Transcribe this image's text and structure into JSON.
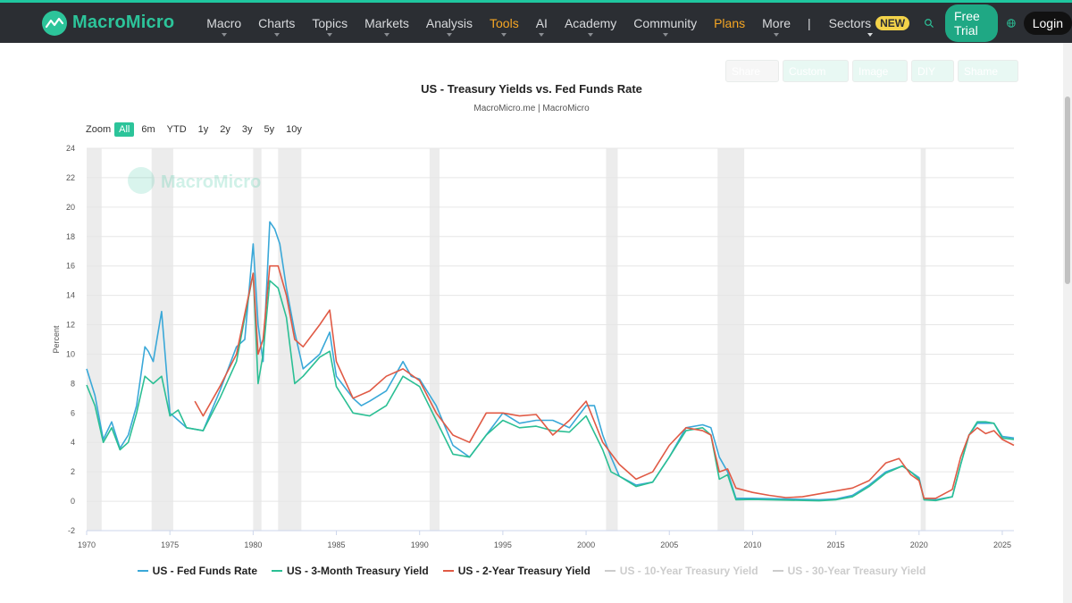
{
  "header": {
    "brand": "MacroMicro",
    "nav": [
      {
        "label": "Macro",
        "caret": true,
        "highlight": false
      },
      {
        "label": "Charts",
        "caret": true,
        "highlight": false
      },
      {
        "label": "Topics",
        "caret": true,
        "highlight": false
      },
      {
        "label": "Markets",
        "caret": true,
        "highlight": false
      },
      {
        "label": "Analysis",
        "caret": true,
        "highlight": false
      },
      {
        "label": "Tools",
        "caret": true,
        "highlight": true
      },
      {
        "label": "AI",
        "caret": true,
        "highlight": false
      },
      {
        "label": "Academy",
        "caret": true,
        "highlight": false
      },
      {
        "label": "Community",
        "caret": true,
        "highlight": false
      },
      {
        "label": "Plans",
        "caret": false,
        "highlight": true
      },
      {
        "label": "More",
        "caret": true,
        "highlight": false
      }
    ],
    "separator": "|",
    "sectors": "Sectors",
    "sectors_badge": "NEW",
    "free_trial": "Free Trial",
    "login": "Login"
  },
  "toolbar": {
    "buttons": [
      "Share",
      "Custom",
      "Image",
      "DIY",
      "Shame"
    ]
  },
  "zoom": {
    "label": "Zoom",
    "options": [
      "All",
      "6m",
      "YTD",
      "1y",
      "2y",
      "3y",
      "5y",
      "10y"
    ],
    "active": "All"
  },
  "watermark": "MacroMicro",
  "colors": {
    "accent": "#2cc49a",
    "fed_funds": "#3aa8d8",
    "three_month": "#2bbf94",
    "two_year": "#e05a45",
    "recession": "#e6e6e6"
  },
  "chart_data": {
    "type": "line",
    "title": "US - Treasury Yields vs. Fed Funds Rate",
    "subtitle": "MacroMicro.me | MacroMicro",
    "ylabel": "Percent",
    "xlabel": "",
    "xlim": [
      1970,
      2025.7
    ],
    "ylim": [
      -2,
      24
    ],
    "yticks": [
      -2,
      0,
      2,
      4,
      6,
      8,
      10,
      12,
      14,
      16,
      18,
      20,
      22,
      24
    ],
    "xticks": [
      1970,
      1975,
      1980,
      1985,
      1990,
      1995,
      2000,
      2005,
      2010,
      2015,
      2020,
      2025
    ],
    "grid": true,
    "recession_bands": [
      [
        1970.0,
        1970.9
      ],
      [
        1973.9,
        1975.2
      ],
      [
        1980.0,
        1980.5
      ],
      [
        1981.5,
        1982.9
      ],
      [
        1990.6,
        1991.2
      ],
      [
        2001.2,
        2001.9
      ],
      [
        2007.9,
        2009.5
      ],
      [
        2020.1,
        2020.4
      ]
    ],
    "legend_position": "bottom",
    "series": [
      {
        "name": "US - Fed Funds Rate",
        "visible": true,
        "x": [
          1970,
          1970.5,
          1971,
          1971.5,
          1972,
          1972.5,
          1973,
          1973.5,
          1973.7,
          1974,
          1974.5,
          1975,
          1975.5,
          1976,
          1977,
          1978,
          1979,
          1979.5,
          1980,
          1980.3,
          1980.6,
          1981,
          1981.3,
          1981.6,
          1982,
          1982.5,
          1983,
          1984,
          1984.6,
          1985,
          1986,
          1986.5,
          1987,
          1988,
          1989,
          1989.5,
          1990,
          1991,
          1992,
          1993,
          1994,
          1995,
          1996,
          1997,
          1998,
          1999,
          2000,
          2000.5,
          2001,
          2001.5,
          2002,
          2003,
          2004,
          2005,
          2006,
          2007,
          2007.5,
          2008,
          2008.5,
          2009,
          2010,
          2012,
          2014,
          2015,
          2016,
          2017,
          2018,
          2019,
          2019.5,
          2020,
          2020.3,
          2021,
          2022,
          2022.5,
          2023,
          2023.5,
          2024,
          2024.5,
          2025,
          2025.7
        ],
        "y": [
          9.0,
          7.2,
          4.2,
          5.4,
          3.6,
          4.5,
          6.5,
          10.5,
          10.2,
          9.5,
          12.9,
          6.0,
          5.5,
          5.0,
          4.8,
          7.5,
          10.5,
          11.0,
          17.5,
          12.0,
          9.5,
          19.0,
          18.5,
          17.5,
          14.5,
          11.5,
          9.0,
          10.0,
          11.5,
          8.5,
          7.0,
          6.5,
          6.8,
          7.5,
          9.5,
          8.5,
          8.3,
          6.5,
          3.8,
          3.0,
          4.5,
          6.0,
          5.3,
          5.5,
          5.5,
          5.0,
          6.5,
          6.5,
          4.5,
          3.0,
          1.7,
          1.1,
          1.3,
          3.0,
          5.0,
          5.2,
          5.0,
          3.0,
          2.0,
          0.2,
          0.2,
          0.15,
          0.1,
          0.15,
          0.4,
          1.1,
          2.0,
          2.4,
          2.0,
          1.6,
          0.1,
          0.1,
          0.3,
          2.5,
          4.5,
          5.3,
          5.3,
          5.3,
          4.4,
          4.3
        ]
      },
      {
        "name": "US - 3-Month Treasury Yield",
        "visible": true,
        "x": [
          1970,
          1970.5,
          1971,
          1971.5,
          1972,
          1972.5,
          1973,
          1973.5,
          1974,
          1974.5,
          1975,
          1975.5,
          1976,
          1977,
          1978,
          1979,
          1980,
          1980.3,
          1980.6,
          1981,
          1981.5,
          1982,
          1982.5,
          1983,
          1984,
          1984.6,
          1985,
          1986,
          1987,
          1988,
          1989,
          1990,
          1991,
          1992,
          1993,
          1994,
          1995,
          1996,
          1997,
          1998,
          1999,
          2000,
          2001,
          2001.5,
          2002,
          2003,
          2004,
          2005,
          2006,
          2007,
          2007.5,
          2008,
          2008.5,
          2009,
          2010,
          2012,
          2014,
          2015,
          2016,
          2017,
          2018,
          2019,
          2019.5,
          2020,
          2020.3,
          2021,
          2022,
          2022.5,
          2023,
          2023.5,
          2024,
          2024.5,
          2025,
          2025.7
        ],
        "y": [
          7.9,
          6.5,
          4.0,
          5.0,
          3.5,
          4.0,
          6.0,
          8.5,
          8.0,
          8.5,
          5.8,
          6.2,
          5.0,
          4.8,
          7.0,
          9.5,
          15.5,
          8.0,
          10.0,
          15.0,
          14.5,
          12.5,
          8.0,
          8.5,
          9.8,
          10.2,
          7.8,
          6.0,
          5.8,
          6.5,
          8.5,
          7.8,
          5.5,
          3.2,
          3.0,
          4.5,
          5.5,
          5.0,
          5.1,
          4.8,
          4.7,
          5.8,
          3.5,
          2.0,
          1.7,
          1.0,
          1.3,
          3.0,
          4.8,
          5.0,
          4.5,
          1.5,
          1.8,
          0.1,
          0.12,
          0.08,
          0.03,
          0.1,
          0.3,
          1.0,
          1.9,
          2.4,
          2.0,
          1.5,
          0.1,
          0.05,
          0.3,
          2.5,
          4.5,
          5.4,
          5.4,
          5.3,
          4.3,
          4.2
        ]
      },
      {
        "name": "US - 2-Year Treasury Yield",
        "visible": true,
        "x": [
          1976.5,
          1977,
          1978,
          1979,
          1980,
          1980.3,
          1980.6,
          1981,
          1981.5,
          1982,
          1982.5,
          1983,
          1984,
          1984.6,
          1985,
          1986,
          1987,
          1988,
          1989,
          1990,
          1991,
          1992,
          1993,
          1994,
          1995,
          1996,
          1997,
          1998,
          1999,
          2000,
          2001,
          2002,
          2003,
          2004,
          2005,
          2006,
          2007,
          2007.5,
          2008,
          2008.5,
          2009,
          2010,
          2011,
          2012,
          2013,
          2014,
          2015,
          2016,
          2017,
          2018,
          2018.8,
          2019.5,
          2020,
          2020.3,
          2021,
          2022,
          2022.5,
          2023,
          2023.5,
          2024,
          2024.5,
          2025,
          2025.7
        ],
        "y": [
          6.8,
          5.8,
          7.8,
          10.0,
          15.5,
          10.0,
          11.0,
          16.0,
          16.0,
          14.0,
          11.0,
          10.5,
          12.0,
          13.0,
          9.5,
          7.0,
          7.5,
          8.5,
          9.0,
          8.2,
          6.0,
          4.5,
          4.0,
          6.0,
          6.0,
          5.8,
          5.9,
          4.5,
          5.5,
          6.8,
          4.0,
          2.5,
          1.5,
          2.0,
          3.8,
          5.0,
          4.8,
          4.5,
          2.0,
          2.2,
          0.9,
          0.6,
          0.4,
          0.25,
          0.3,
          0.5,
          0.7,
          0.9,
          1.4,
          2.6,
          2.9,
          1.8,
          1.4,
          0.2,
          0.2,
          0.8,
          3.0,
          4.5,
          5.0,
          4.6,
          4.8,
          4.2,
          3.8
        ]
      },
      {
        "name": "US - 10-Year Treasury Yield",
        "visible": false
      },
      {
        "name": "US - 30-Year Treasury Yield",
        "visible": false
      }
    ]
  }
}
